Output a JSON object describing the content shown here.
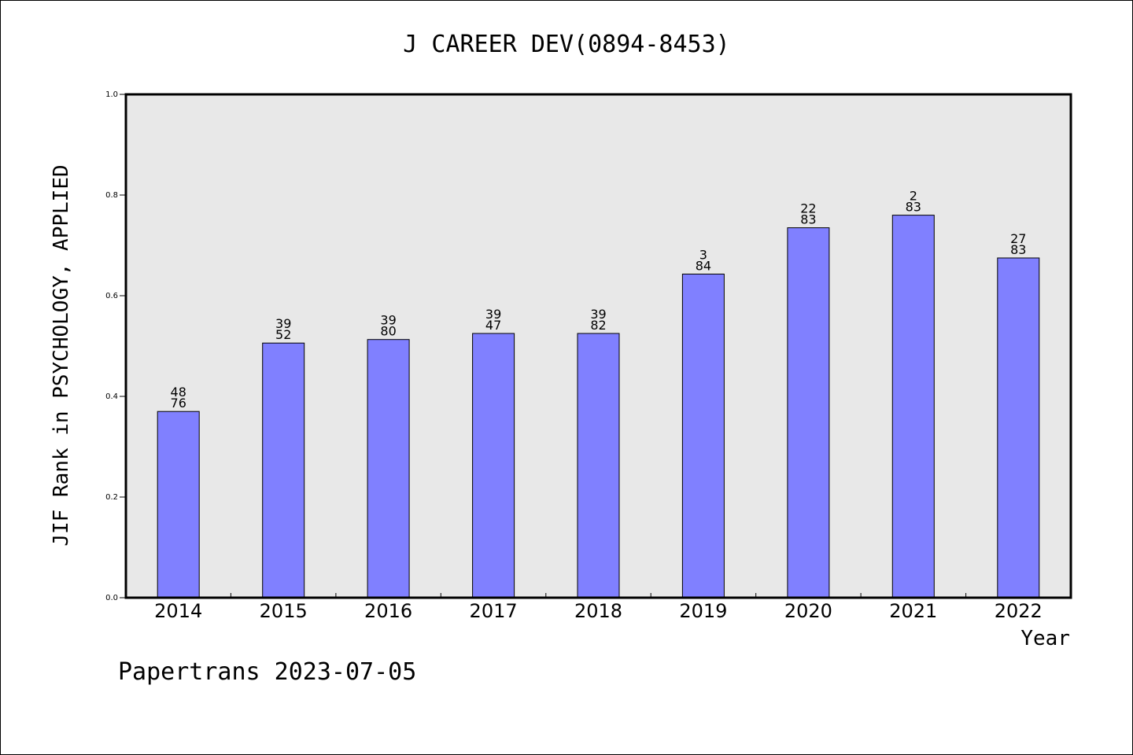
{
  "chart_data": {
    "type": "bar",
    "title": "J CAREER DEV(0894-8453)",
    "ylabel": "JIF Rank in PSYCHOLOGY, APPLIED",
    "xlabel": "Year",
    "ylim": [
      0.0,
      1.0
    ],
    "yticks": [
      "0.0",
      "0.2",
      "0.4",
      "0.6",
      "0.8",
      "1.0"
    ],
    "categories": [
      "2014",
      "2015",
      "2016",
      "2017",
      "2018",
      "2019",
      "2020",
      "2021",
      "2022"
    ],
    "values": [
      0.37,
      0.506,
      0.513,
      0.525,
      0.525,
      0.643,
      0.735,
      0.76,
      0.675
    ],
    "label_top": [
      "48",
      "39",
      "39",
      "39",
      "39",
      "3",
      "22",
      "2",
      "27"
    ],
    "label_bottom": [
      "76",
      "52",
      "80",
      "47",
      "82",
      "84",
      "83",
      "83",
      "83"
    ],
    "grid": false,
    "colors": {
      "bar_fill": "#8080ff",
      "plot_bg": "#e8e8e8"
    }
  },
  "footer": "Papertrans 2023-07-05"
}
